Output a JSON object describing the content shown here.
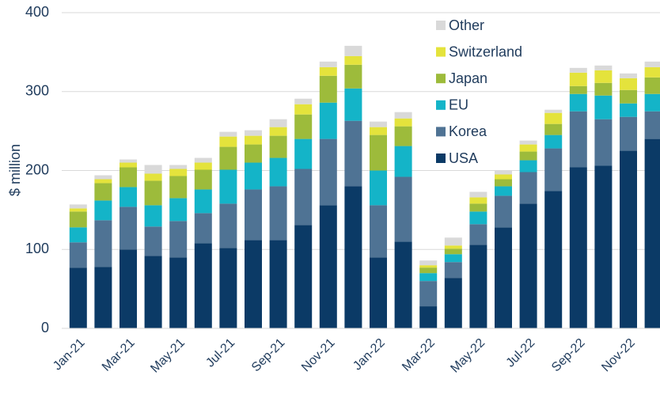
{
  "chart_data": {
    "type": "stacked_bar",
    "y_label": "$ million",
    "categories": [
      "Jan-21",
      null,
      "Mar-21",
      null,
      "May-21",
      null,
      "Jul-21",
      null,
      "Sep-21",
      null,
      "Nov-21",
      null,
      "Jan-22",
      null,
      "Mar-22",
      null,
      "May-22",
      null,
      "Jul-22",
      null,
      "Sep-22",
      null,
      "Nov-22",
      null
    ],
    "series": [
      {
        "name": "USA",
        "color": "#0b3a66",
        "values": [
          77,
          78,
          100,
          92,
          90,
          108,
          102,
          112,
          112,
          131,
          156,
          180,
          90,
          110,
          28,
          64,
          106,
          128,
          158,
          174,
          204,
          206,
          225,
          240
        ]
      },
      {
        "name": "Korea",
        "color": "#4f7394",
        "values": [
          32,
          59,
          54,
          37,
          46,
          38,
          56,
          64,
          68,
          71,
          84,
          83,
          66,
          82,
          32,
          20,
          26,
          40,
          40,
          54,
          71,
          59,
          43,
          35
        ]
      },
      {
        "name": "EU",
        "color": "#14b4c8",
        "values": [
          19,
          25,
          25,
          27,
          29,
          30,
          43,
          34,
          36,
          38,
          46,
          41,
          44,
          39,
          10,
          10,
          16,
          12,
          15,
          17,
          22,
          30,
          17,
          22
        ]
      },
      {
        "name": "Japan",
        "color": "#9dbb3b",
        "values": [
          20,
          22,
          25,
          31,
          28,
          25,
          29,
          23,
          28,
          31,
          34,
          30,
          45,
          25,
          7,
          7,
          10,
          9,
          11,
          14,
          10,
          16,
          17,
          21
        ]
      },
      {
        "name": "Switzerland",
        "color": "#e4e33c",
        "values": [
          4,
          5,
          6,
          9,
          9,
          9,
          13,
          11,
          11,
          13,
          11,
          11,
          10,
          10,
          3,
          4,
          8,
          6,
          9,
          14,
          17,
          16,
          15,
          13
        ]
      },
      {
        "name": "Other",
        "color": "#d9d9d9",
        "values": [
          5,
          5,
          4,
          11,
          5,
          6,
          6,
          7,
          10,
          7,
          7,
          13,
          7,
          8,
          6,
          10,
          7,
          5,
          5,
          4,
          6,
          6,
          6,
          7
        ]
      }
    ],
    "ylim": [
      0,
      400
    ],
    "yticks": [
      0,
      100,
      200,
      300,
      400
    ],
    "grid": true,
    "legend": "upper right"
  }
}
